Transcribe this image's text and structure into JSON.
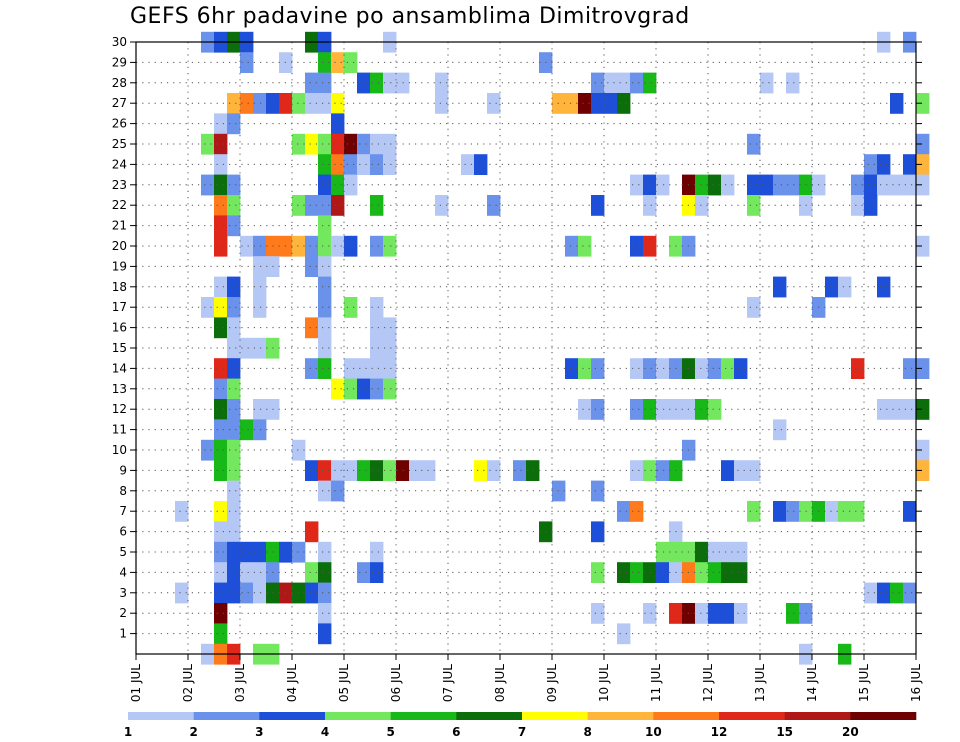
{
  "title": "GEFS 6hr padavine po ansamblima Dimitrovgrad",
  "chart_data": {
    "type": "heatmap",
    "title": "GEFS 6hr padavine po ansamblima Dimitrovgrad",
    "x_tick_labels": [
      "01 JUL",
      "02 JUL",
      "03 JUL",
      "04 JUL",
      "05 JUL",
      "06 JUL",
      "07 JUL",
      "08 JUL",
      "09 JUL",
      "10 JUL",
      "11 JUL",
      "12 JUL",
      "13 JUL",
      "14 JUL",
      "15 JUL",
      "16 JUL"
    ],
    "xlim_days": [
      1,
      16
    ],
    "y_tick_labels": [
      "1",
      "2",
      "3",
      "4",
      "5",
      "6",
      "7",
      "8",
      "9",
      "10",
      "11",
      "12",
      "13",
      "14",
      "15",
      "16",
      "17",
      "18",
      "19",
      "20",
      "21",
      "22",
      "23",
      "24",
      "25",
      "26",
      "27",
      "28",
      "29",
      "30"
    ],
    "ylim_members": [
      0,
      30
    ],
    "grid": "dotted",
    "colorbar": {
      "labels": [
        "1",
        "2",
        "3",
        "4",
        "5",
        "6",
        "7",
        "8",
        "10",
        "12",
        "15",
        "20"
      ],
      "colors": [
        "#b5c8f5",
        "#6a92ea",
        "#1e4fd8",
        "#73e85f",
        "#18b818",
        "#0b6e0b",
        "#ffff00",
        "#ffb43c",
        "#ff7a1a",
        "#e0281a",
        "#b01818",
        "#6e0000"
      ]
    },
    "cells": [
      [
        2.25,
        30,
        1
      ],
      [
        2.5,
        30,
        2
      ],
      [
        2.75,
        30,
        5
      ],
      [
        3.0,
        30,
        2
      ],
      [
        4.25,
        30,
        5
      ],
      [
        4.5,
        30,
        2
      ],
      [
        5.75,
        30,
        0
      ],
      [
        15.25,
        30,
        0
      ],
      [
        15.75,
        30,
        1
      ],
      [
        3.0,
        29,
        1
      ],
      [
        3.75,
        29,
        0
      ],
      [
        4.5,
        29,
        4
      ],
      [
        4.75,
        29,
        7
      ],
      [
        5.0,
        29,
        3
      ],
      [
        8.75,
        29,
        1
      ],
      [
        4.25,
        28,
        1
      ],
      [
        4.5,
        28,
        1
      ],
      [
        5.25,
        28,
        2
      ],
      [
        5.5,
        28,
        4
      ],
      [
        5.75,
        28,
        0
      ],
      [
        6.0,
        28,
        0
      ],
      [
        6.75,
        28,
        0
      ],
      [
        9.75,
        28,
        1
      ],
      [
        10.0,
        28,
        0
      ],
      [
        10.25,
        28,
        0
      ],
      [
        10.5,
        28,
        1
      ],
      [
        10.75,
        28,
        4
      ],
      [
        13.0,
        28,
        0
      ],
      [
        13.5,
        28,
        0
      ],
      [
        6.75,
        27,
        0
      ],
      [
        2.75,
        27,
        7
      ],
      [
        3.0,
        27,
        8
      ],
      [
        3.25,
        27,
        1
      ],
      [
        3.5,
        27,
        2
      ],
      [
        3.75,
        27,
        9
      ],
      [
        4.0,
        27,
        3
      ],
      [
        4.25,
        27,
        0
      ],
      [
        4.5,
        27,
        0
      ],
      [
        4.75,
        27,
        6
      ],
      [
        7.75,
        27,
        0
      ],
      [
        9.0,
        27,
        7
      ],
      [
        9.25,
        27,
        7
      ],
      [
        9.5,
        27,
        11
      ],
      [
        9.75,
        27,
        2
      ],
      [
        10.0,
        27,
        2
      ],
      [
        10.25,
        27,
        5
      ],
      [
        15.5,
        27,
        2
      ],
      [
        16.0,
        27,
        3
      ],
      [
        2.5,
        26,
        0
      ],
      [
        2.75,
        26,
        1
      ],
      [
        4.75,
        26,
        2
      ],
      [
        2.25,
        25,
        3
      ],
      [
        2.5,
        25,
        10
      ],
      [
        4.0,
        25,
        3
      ],
      [
        4.25,
        25,
        6
      ],
      [
        4.5,
        25,
        3
      ],
      [
        4.75,
        25,
        9
      ],
      [
        5.0,
        25,
        11
      ],
      [
        5.25,
        25,
        1
      ],
      [
        5.5,
        25,
        0
      ],
      [
        5.75,
        25,
        0
      ],
      [
        12.75,
        25,
        1
      ],
      [
        16.0,
        25,
        1
      ],
      [
        2.5,
        24,
        0
      ],
      [
        4.5,
        24,
        4
      ],
      [
        4.75,
        24,
        8
      ],
      [
        5.0,
        24,
        1
      ],
      [
        5.25,
        24,
        0
      ],
      [
        5.5,
        24,
        1
      ],
      [
        5.75,
        24,
        0
      ],
      [
        7.25,
        24,
        0
      ],
      [
        7.5,
        24,
        2
      ],
      [
        15.0,
        24,
        1
      ],
      [
        15.25,
        24,
        2
      ],
      [
        15.75,
        24,
        2
      ],
      [
        16.0,
        24,
        7
      ],
      [
        2.25,
        23,
        1
      ],
      [
        2.5,
        23,
        5
      ],
      [
        2.75,
        23,
        1
      ],
      [
        4.5,
        23,
        2
      ],
      [
        4.75,
        23,
        4
      ],
      [
        5.0,
        23,
        0
      ],
      [
        10.5,
        23,
        0
      ],
      [
        10.75,
        23,
        2
      ],
      [
        11.0,
        23,
        0
      ],
      [
        11.5,
        23,
        11
      ],
      [
        11.75,
        23,
        4
      ],
      [
        12.0,
        23,
        5
      ],
      [
        12.25,
        23,
        0
      ],
      [
        12.75,
        23,
        2
      ],
      [
        13.0,
        23,
        2
      ],
      [
        13.25,
        23,
        1
      ],
      [
        13.5,
        23,
        1
      ],
      [
        13.75,
        23,
        4
      ],
      [
        14.0,
        23,
        0
      ],
      [
        14.75,
        23,
        1
      ],
      [
        15.0,
        23,
        2
      ],
      [
        15.25,
        23,
        0
      ],
      [
        15.5,
        23,
        0
      ],
      [
        15.75,
        23,
        0
      ],
      [
        16.0,
        23,
        0
      ],
      [
        2.5,
        22,
        8
      ],
      [
        2.75,
        22,
        3
      ],
      [
        4.0,
        22,
        3
      ],
      [
        4.25,
        22,
        1
      ],
      [
        4.5,
        22,
        1
      ],
      [
        4.75,
        22,
        10
      ],
      [
        5.5,
        22,
        4
      ],
      [
        6.75,
        22,
        0
      ],
      [
        7.75,
        22,
        1
      ],
      [
        9.75,
        22,
        2
      ],
      [
        10.75,
        22,
        0
      ],
      [
        11.5,
        22,
        6
      ],
      [
        11.75,
        22,
        0
      ],
      [
        12.75,
        22,
        3
      ],
      [
        13.75,
        22,
        0
      ],
      [
        14.75,
        22,
        0
      ],
      [
        15.0,
        22,
        2
      ],
      [
        2.5,
        21,
        9
      ],
      [
        2.75,
        21,
        1
      ],
      [
        4.5,
        21,
        3
      ],
      [
        2.5,
        20,
        9
      ],
      [
        3.0,
        20,
        0
      ],
      [
        3.25,
        20,
        1
      ],
      [
        3.5,
        20,
        8
      ],
      [
        3.75,
        20,
        8
      ],
      [
        4.0,
        20,
        7
      ],
      [
        4.25,
        20,
        1
      ],
      [
        4.5,
        20,
        3
      ],
      [
        4.75,
        20,
        0
      ],
      [
        5.0,
        20,
        2
      ],
      [
        5.5,
        20,
        1
      ],
      [
        5.75,
        20,
        3
      ],
      [
        9.25,
        20,
        1
      ],
      [
        9.5,
        20,
        3
      ],
      [
        10.5,
        20,
        2
      ],
      [
        10.75,
        20,
        9
      ],
      [
        11.25,
        20,
        3
      ],
      [
        11.5,
        20,
        1
      ],
      [
        16.0,
        20,
        0
      ],
      [
        3.25,
        19,
        0
      ],
      [
        3.5,
        19,
        0
      ],
      [
        4.25,
        19,
        1
      ],
      [
        4.5,
        19,
        0
      ],
      [
        2.5,
        18,
        0
      ],
      [
        2.75,
        18,
        2
      ],
      [
        3.25,
        18,
        0
      ],
      [
        4.5,
        18,
        1
      ],
      [
        13.25,
        18,
        2
      ],
      [
        14.25,
        18,
        2
      ],
      [
        14.5,
        18,
        0
      ],
      [
        15.25,
        18,
        2
      ],
      [
        2.25,
        17,
        0
      ],
      [
        2.5,
        17,
        6
      ],
      [
        2.75,
        17,
        1
      ],
      [
        3.25,
        17,
        0
      ],
      [
        4.5,
        17,
        1
      ],
      [
        5.0,
        17,
        3
      ],
      [
        5.5,
        17,
        0
      ],
      [
        12.75,
        17,
        0
      ],
      [
        14.0,
        17,
        1
      ],
      [
        2.5,
        16,
        5
      ],
      [
        2.75,
        16,
        0
      ],
      [
        4.25,
        16,
        8
      ],
      [
        4.5,
        16,
        0
      ],
      [
        5.5,
        16,
        0
      ],
      [
        5.75,
        16,
        0
      ],
      [
        2.75,
        15,
        0
      ],
      [
        3.0,
        15,
        0
      ],
      [
        3.25,
        15,
        0
      ],
      [
        3.5,
        15,
        3
      ],
      [
        4.5,
        15,
        0
      ],
      [
        5.5,
        15,
        0
      ],
      [
        5.75,
        15,
        0
      ],
      [
        2.5,
        14,
        9
      ],
      [
        2.75,
        14,
        2
      ],
      [
        4.25,
        14,
        1
      ],
      [
        4.5,
        14,
        4
      ],
      [
        5.0,
        14,
        0
      ],
      [
        5.25,
        14,
        0
      ],
      [
        5.5,
        14,
        0
      ],
      [
        5.75,
        14,
        0
      ],
      [
        9.25,
        14,
        2
      ],
      [
        9.5,
        14,
        3
      ],
      [
        9.75,
        14,
        1
      ],
      [
        10.5,
        14,
        0
      ],
      [
        10.75,
        14,
        1
      ],
      [
        11.0,
        14,
        0
      ],
      [
        11.25,
        14,
        1
      ],
      [
        11.5,
        14,
        5
      ],
      [
        11.75,
        14,
        0
      ],
      [
        12.0,
        14,
        1
      ],
      [
        12.25,
        14,
        3
      ],
      [
        12.5,
        14,
        2
      ],
      [
        14.75,
        14,
        9
      ],
      [
        15.75,
        14,
        1
      ],
      [
        16.0,
        14,
        1
      ],
      [
        2.5,
        13,
        1
      ],
      [
        2.75,
        13,
        3
      ],
      [
        4.75,
        13,
        6
      ],
      [
        5.0,
        13,
        3
      ],
      [
        5.25,
        13,
        2
      ],
      [
        5.5,
        13,
        1
      ],
      [
        5.75,
        13,
        3
      ],
      [
        2.5,
        12,
        5
      ],
      [
        2.75,
        12,
        1
      ],
      [
        3.25,
        12,
        0
      ],
      [
        3.5,
        12,
        0
      ],
      [
        9.5,
        12,
        0
      ],
      [
        9.75,
        12,
        1
      ],
      [
        10.5,
        12,
        1
      ],
      [
        10.75,
        12,
        4
      ],
      [
        11.0,
        12,
        0
      ],
      [
        11.25,
        12,
        0
      ],
      [
        11.5,
        12,
        0
      ],
      [
        11.75,
        12,
        4
      ],
      [
        12.0,
        12,
        3
      ],
      [
        15.25,
        12,
        0
      ],
      [
        15.5,
        12,
        0
      ],
      [
        15.75,
        12,
        0
      ],
      [
        16.0,
        12,
        5
      ],
      [
        2.5,
        11,
        1
      ],
      [
        2.75,
        11,
        1
      ],
      [
        3.0,
        11,
        4
      ],
      [
        3.25,
        11,
        1
      ],
      [
        13.25,
        11,
        0
      ],
      [
        2.25,
        10,
        1
      ],
      [
        2.5,
        10,
        4
      ],
      [
        2.75,
        10,
        3
      ],
      [
        4.0,
        10,
        0
      ],
      [
        11.5,
        10,
        1
      ],
      [
        16.0,
        10,
        0
      ],
      [
        2.5,
        9,
        4
      ],
      [
        2.75,
        9,
        3
      ],
      [
        4.25,
        9,
        2
      ],
      [
        4.5,
        9,
        9
      ],
      [
        4.75,
        9,
        0
      ],
      [
        5.0,
        9,
        0
      ],
      [
        5.25,
        9,
        4
      ],
      [
        5.5,
        9,
        5
      ],
      [
        5.75,
        9,
        3
      ],
      [
        6.0,
        9,
        11
      ],
      [
        6.25,
        9,
        0
      ],
      [
        6.5,
        9,
        0
      ],
      [
        7.5,
        9,
        6
      ],
      [
        7.75,
        9,
        0
      ],
      [
        8.25,
        9,
        1
      ],
      [
        8.5,
        9,
        5
      ],
      [
        10.5,
        9,
        0
      ],
      [
        10.75,
        9,
        3
      ],
      [
        11.0,
        9,
        1
      ],
      [
        11.25,
        9,
        4
      ],
      [
        12.25,
        9,
        2
      ],
      [
        12.5,
        9,
        0
      ],
      [
        12.75,
        9,
        0
      ],
      [
        16.0,
        9,
        7
      ],
      [
        2.75,
        8,
        0
      ],
      [
        4.5,
        8,
        0
      ],
      [
        4.75,
        8,
        1
      ],
      [
        9.0,
        8,
        1
      ],
      [
        9.75,
        8,
        1
      ],
      [
        1.75,
        7,
        0
      ],
      [
        2.5,
        7,
        6
      ],
      [
        2.75,
        7,
        0
      ],
      [
        10.25,
        7,
        1
      ],
      [
        10.5,
        7,
        8
      ],
      [
        12.75,
        7,
        3
      ],
      [
        13.25,
        7,
        2
      ],
      [
        13.5,
        7,
        1
      ],
      [
        13.75,
        7,
        3
      ],
      [
        14.0,
        7,
        4
      ],
      [
        14.25,
        7,
        0
      ],
      [
        14.5,
        7,
        3
      ],
      [
        14.75,
        7,
        3
      ],
      [
        15.75,
        7,
        2
      ],
      [
        2.5,
        6,
        0
      ],
      [
        2.75,
        6,
        0
      ],
      [
        4.25,
        6,
        9
      ],
      [
        8.75,
        6,
        5
      ],
      [
        9.75,
        6,
        2
      ],
      [
        11.25,
        6,
        0
      ],
      [
        2.5,
        5,
        1
      ],
      [
        2.75,
        5,
        2
      ],
      [
        3.0,
        5,
        2
      ],
      [
        3.25,
        5,
        2
      ],
      [
        3.5,
        5,
        4
      ],
      [
        3.75,
        5,
        2
      ],
      [
        4.0,
        5,
        1
      ],
      [
        4.5,
        5,
        0
      ],
      [
        5.5,
        5,
        0
      ],
      [
        11.0,
        5,
        3
      ],
      [
        11.25,
        5,
        3
      ],
      [
        11.5,
        5,
        3
      ],
      [
        11.75,
        5,
        5
      ],
      [
        12.0,
        5,
        0
      ],
      [
        12.25,
        5,
        0
      ],
      [
        12.5,
        5,
        0
      ],
      [
        2.5,
        4,
        0
      ],
      [
        2.75,
        4,
        2
      ],
      [
        3.0,
        4,
        0
      ],
      [
        3.25,
        4,
        0
      ],
      [
        3.5,
        4,
        1
      ],
      [
        4.25,
        4,
        3
      ],
      [
        4.5,
        4,
        5
      ],
      [
        5.25,
        4,
        1
      ],
      [
        5.5,
        4,
        2
      ],
      [
        9.75,
        4,
        3
      ],
      [
        10.25,
        4,
        5
      ],
      [
        10.5,
        4,
        4
      ],
      [
        10.75,
        4,
        5
      ],
      [
        11.0,
        4,
        2
      ],
      [
        11.25,
        4,
        0
      ],
      [
        11.5,
        4,
        8
      ],
      [
        11.75,
        4,
        3
      ],
      [
        12.0,
        4,
        4
      ],
      [
        12.25,
        4,
        5
      ],
      [
        12.5,
        4,
        5
      ],
      [
        1.75,
        3,
        0
      ],
      [
        2.5,
        3,
        2
      ],
      [
        2.75,
        3,
        2
      ],
      [
        3.0,
        3,
        1
      ],
      [
        3.25,
        3,
        0
      ],
      [
        3.5,
        3,
        5
      ],
      [
        3.75,
        3,
        10
      ],
      [
        4.0,
        3,
        5
      ],
      [
        4.25,
        3,
        2
      ],
      [
        4.5,
        3,
        1
      ],
      [
        15.0,
        3,
        0
      ],
      [
        15.25,
        3,
        2
      ],
      [
        15.5,
        3,
        4
      ],
      [
        15.75,
        3,
        1
      ],
      [
        2.5,
        2,
        11
      ],
      [
        4.5,
        2,
        0
      ],
      [
        9.75,
        2,
        0
      ],
      [
        10.75,
        2,
        0
      ],
      [
        11.25,
        2,
        9
      ],
      [
        11.5,
        2,
        11
      ],
      [
        11.75,
        2,
        0
      ],
      [
        12.0,
        2,
        2
      ],
      [
        12.25,
        2,
        2
      ],
      [
        12.5,
        2,
        0
      ],
      [
        13.5,
        2,
        4
      ],
      [
        13.75,
        2,
        1
      ],
      [
        2.5,
        1,
        4
      ],
      [
        4.5,
        1,
        2
      ],
      [
        10.25,
        1,
        0
      ],
      [
        2.25,
        0,
        0
      ],
      [
        2.5,
        0,
        8
      ],
      [
        2.75,
        0,
        9
      ],
      [
        3.25,
        0,
        3
      ],
      [
        3.5,
        0,
        3
      ],
      [
        13.75,
        0,
        0
      ],
      [
        14.5,
        0,
        4
      ]
    ]
  }
}
